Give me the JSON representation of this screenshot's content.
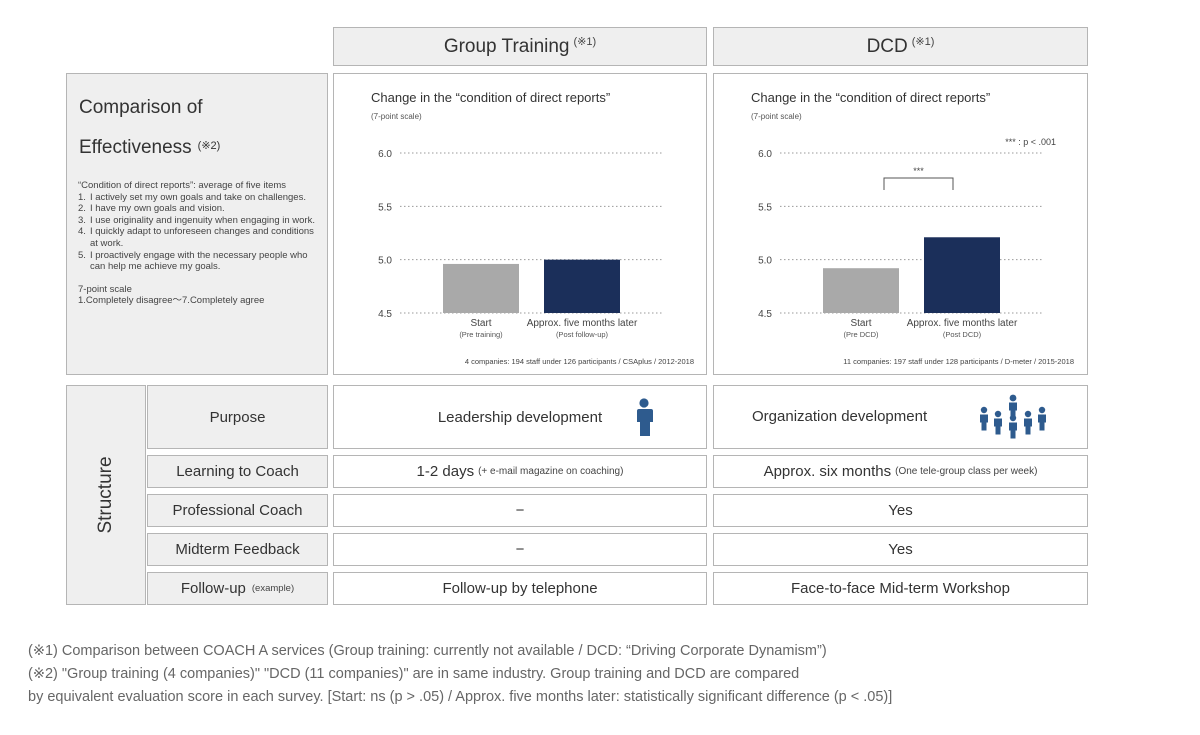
{
  "header": {
    "group_training": {
      "label": "Group Training",
      "note": "(※1)"
    },
    "dcd": {
      "label": "DCD",
      "note": "(※1)"
    }
  },
  "comparison": {
    "title_line1": "Comparison of",
    "title_line2": "Effectiveness",
    "title_note": "(※2)",
    "intro": "“Condition of direct reports”: average of five items",
    "items": [
      {
        "num": "1.",
        "text": "I actively set my own goals and take on challenges."
      },
      {
        "num": "2.",
        "text": "I have my own goals and vision."
      },
      {
        "num": "3.",
        "text": "I use originality and ingenuity when engaging in work."
      },
      {
        "num": "4.",
        "text": "I quickly adapt to unforeseen changes and conditions at work."
      },
      {
        "num": "5.",
        "text": "I proactively engage with the necessary people who can help me achieve my goals."
      }
    ],
    "scale_title": "7-point scale",
    "scale_range": "1.Completely disagree～7.Completely agree"
  },
  "chart_data": [
    {
      "type": "bar",
      "title": "Change in the “condition of direct reports”",
      "subtitle": "(7-point scale)",
      "categories": [
        "Start",
        "Approx. five months later"
      ],
      "category_sublabels": [
        "(Pre training)",
        "(Post follow-up)"
      ],
      "values": [
        4.96,
        5.0
      ],
      "bar_colors": [
        "#a9a9a9",
        "#1b2f5a"
      ],
      "yticks": [
        "4.5",
        "5.0",
        "5.5",
        "6.0"
      ],
      "ylim": [
        4.5,
        6.0
      ],
      "grid": "dotted",
      "source": "4 companies: 194 staff under 126 participants / CSAplus / 2012-2018"
    },
    {
      "type": "bar",
      "title": "Change in the “condition of direct reports”",
      "subtitle": "(7-point scale)",
      "categories": [
        "Start",
        "Approx. five months later"
      ],
      "category_sublabels": [
        "(Pre DCD)",
        "(Post DCD)"
      ],
      "values": [
        4.92,
        5.21
      ],
      "bar_colors": [
        "#a9a9a9",
        "#1b2f5a"
      ],
      "yticks": [
        "4.5",
        "5.0",
        "5.5",
        "6.0"
      ],
      "ylim": [
        4.5,
        6.0
      ],
      "grid": "dotted",
      "significance": "***",
      "significance_legend": "*** : p < .001",
      "source": "11 companies:  197 staff under 128 participants / D-meter / 2015-2018"
    }
  ],
  "structure": {
    "label": "Structure",
    "rows": [
      {
        "label": "Purpose",
        "label_note": "",
        "group": "Leadership development",
        "group_note": "",
        "dcd": "Organization development",
        "dcd_note": ""
      },
      {
        "label": "Learning to Coach",
        "label_note": "",
        "group": "1-2 days",
        "group_note": "(+ e-mail magazine on coaching)",
        "dcd": "Approx. six months",
        "dcd_note": "(One tele-group class per week)"
      },
      {
        "label": "Professional Coach",
        "label_note": "",
        "group": "−",
        "group_note": "",
        "dcd": "Yes",
        "dcd_note": ""
      },
      {
        "label": "Midterm Feedback",
        "label_note": "",
        "group": "−",
        "group_note": "",
        "dcd": "Yes",
        "dcd_note": ""
      },
      {
        "label": "Follow-up",
        "label_note": "(example)",
        "group": "Follow-up by telephone",
        "group_note": "",
        "dcd": "Face-to-face Mid-term Workshop",
        "dcd_note": ""
      }
    ],
    "icons": {
      "group": "person-icon",
      "dcd": "people-group-icon",
      "color": "#2e5b8e"
    }
  },
  "footnotes": {
    "note1": "(※1) Comparison between COACH A services (Group training: currently not available / DCD: “Driving Corporate Dynamism”)",
    "note2_line1": "(※2) \"Group training (4 companies)\" \"DCD (11 companies)\" are in same industry. Group training and DCD are compared",
    "note2_line2": "by equivalent evaluation score in each survey. [Start: ns (p > .05) / Approx. five months later: statistically significant difference (p < .05)]"
  }
}
